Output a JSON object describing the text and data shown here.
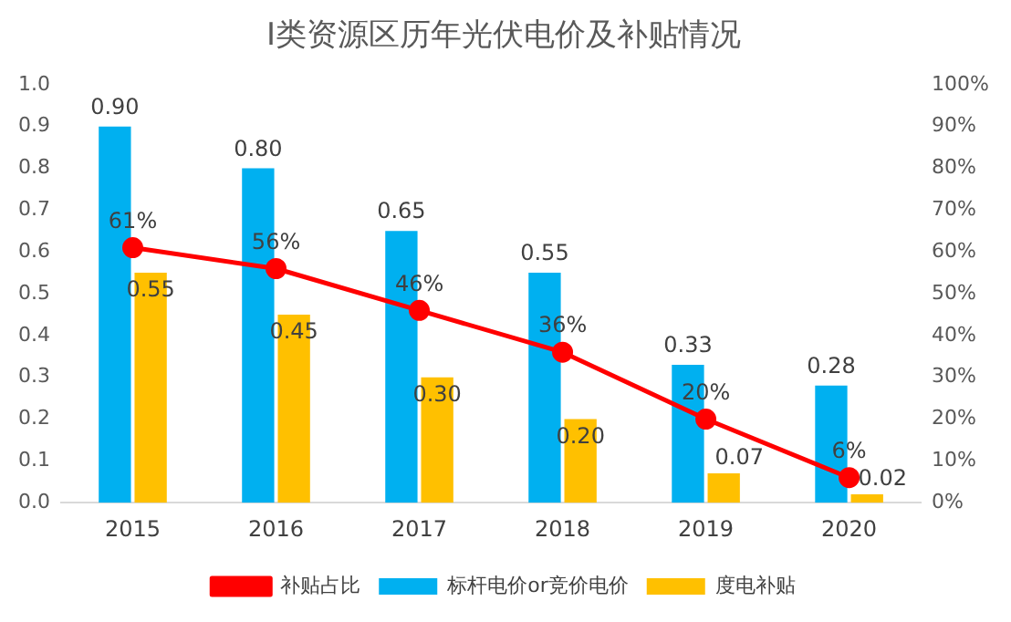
{
  "chart_data": {
    "type": "bar",
    "title": "I类资源区历年光伏电价及补贴情况",
    "categories": [
      "2015",
      "2016",
      "2017",
      "2018",
      "2019",
      "2020"
    ],
    "series": [
      {
        "name": "标杆电价or竞价电价",
        "color": "#00b0f0",
        "values": [
          0.9,
          0.8,
          0.65,
          0.55,
          0.33,
          0.28
        ],
        "value_labels": [
          "0.90",
          "0.80",
          "0.65",
          "0.55",
          "0.33",
          "0.28"
        ]
      },
      {
        "name": "度电补贴",
        "color": "#ffc000",
        "values": [
          0.55,
          0.45,
          0.3,
          0.2,
          0.07,
          0.02
        ],
        "value_labels": [
          "0.55",
          "0.45",
          "0.30",
          "0.20",
          "0.07",
          "0.02"
        ]
      },
      {
        "name": "补贴占比",
        "type": "line",
        "axis": "y2",
        "color": "#ff0000",
        "marker": "circle",
        "values": [
          61,
          56,
          46,
          36,
          20,
          6
        ],
        "value_labels": [
          "61%",
          "56%",
          "46%",
          "36%",
          "20%",
          "6%"
        ]
      }
    ],
    "ylim": [
      0,
      1
    ],
    "yticks": [
      {
        "value": 0,
        "label": "0.0"
      },
      0.1,
      0.2,
      0.3,
      0.4,
      0.5,
      0.6,
      0.7,
      0.8,
      0.9,
      {
        "value": 1,
        "label": "1.0"
      }
    ],
    "y2lim": [
      0,
      100
    ],
    "y2ticks": [
      {
        "value": 0,
        "label": "0%"
      },
      {
        "value": 10,
        "label": "10%"
      },
      {
        "value": 20,
        "label": "20%"
      },
      {
        "value": 30,
        "label": "30%"
      },
      {
        "value": 40,
        "label": "40%"
      },
      {
        "value": 50,
        "label": "50%"
      },
      {
        "value": 60,
        "label": "60%"
      },
      {
        "value": 70,
        "label": "70%"
      },
      {
        "value": 80,
        "label": "80%"
      },
      {
        "value": 90,
        "label": "90%"
      },
      {
        "value": 100,
        "label": "100%"
      }
    ],
    "grid": false,
    "legend": "bottom"
  }
}
